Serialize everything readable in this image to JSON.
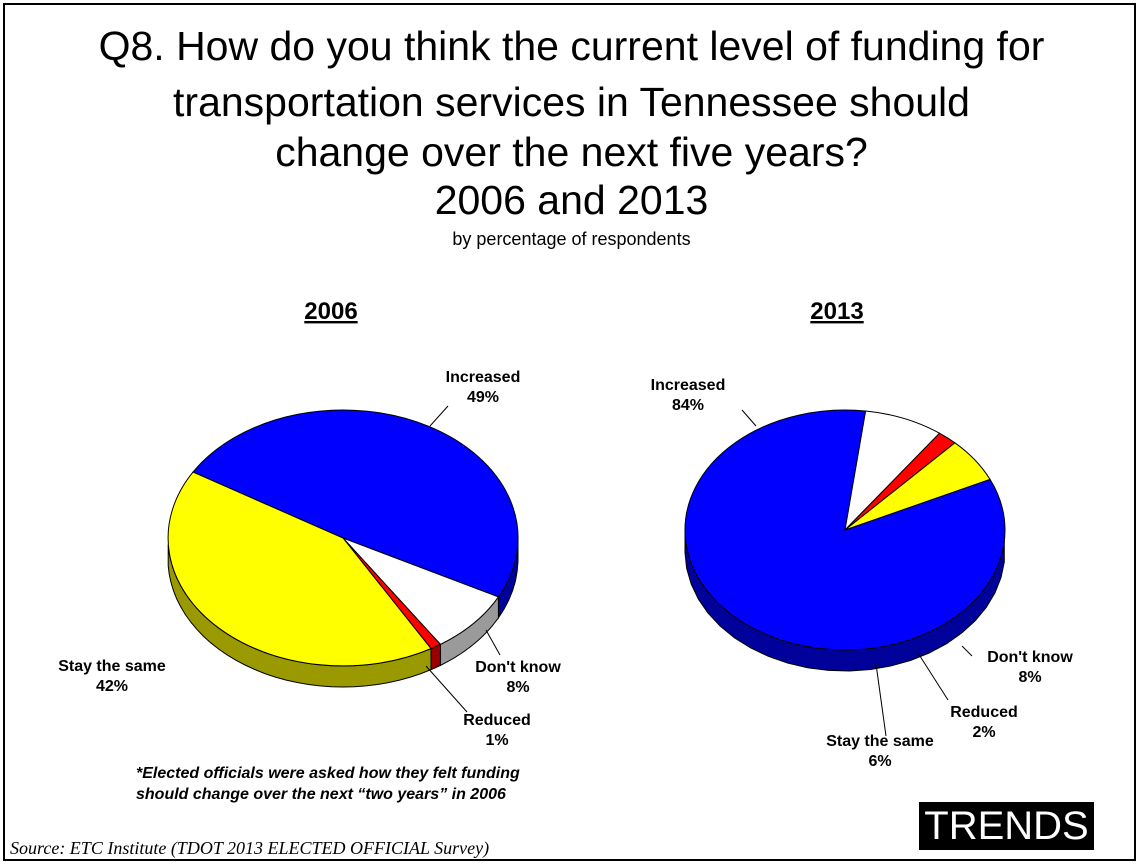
{
  "title_lines": [
    "Q8. How do you think the current level of funding for",
    "transportation services in Tennessee should",
    "change over the next five years?",
    "2006 and 2013"
  ],
  "subtitle": "by percentage of respondents",
  "footnote": {
    "line1": "*Elected officials were asked how they felt funding",
    "line2": "should change over the next “two years” in 2006"
  },
  "source": "Source:  ETC Institute (TDOT 2013 ELECTED OFFICIAL Survey)",
  "badge": "TRENDS",
  "colors": {
    "Increased": "#0000ff",
    "Don't know": "#ffffff",
    "Reduced": "#ff0000",
    "Stay the same": "#ffff00"
  },
  "chart_data": [
    {
      "type": "pie",
      "title": "2006",
      "style": "3d",
      "slices": [
        {
          "label": "Increased",
          "value": 49,
          "display": "49%"
        },
        {
          "label": "Don't know",
          "value": 8,
          "display": "8%"
        },
        {
          "label": "Reduced",
          "value": 1,
          "display": "1%"
        },
        {
          "label": "Stay the same",
          "value": 42,
          "display": "42%"
        }
      ]
    },
    {
      "type": "pie",
      "title": "2013",
      "style": "3d",
      "slices": [
        {
          "label": "Increased",
          "value": 84,
          "display": "84%"
        },
        {
          "label": "Don't know",
          "value": 8,
          "display": "8%"
        },
        {
          "label": "Reduced",
          "value": 2,
          "display": "2%"
        },
        {
          "label": "Stay the same",
          "value": 6,
          "display": "6%"
        }
      ]
    }
  ]
}
